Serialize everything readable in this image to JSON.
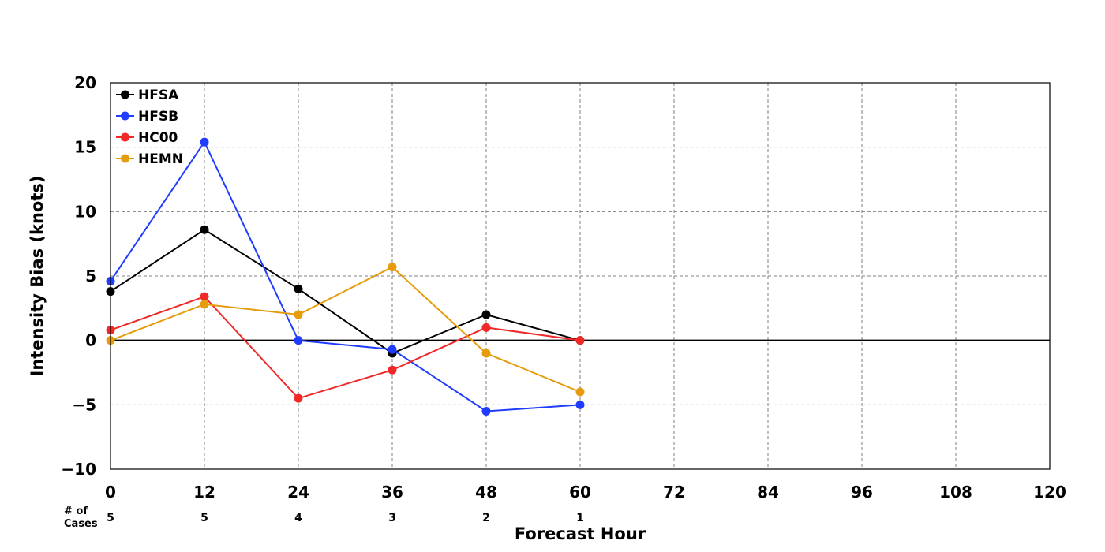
{
  "chart_data": {
    "type": "line",
    "title": "",
    "xlabel": "Forecast Hour",
    "ylabel": "Intensity Bias (knots)",
    "xlim": [
      0,
      120
    ],
    "ylim": [
      -10,
      20
    ],
    "xticks": [
      0,
      12,
      24,
      36,
      48,
      60,
      72,
      84,
      96,
      108,
      120
    ],
    "yticks": [
      -10,
      -5,
      0,
      5,
      10,
      15,
      20
    ],
    "x": [
      0,
      12,
      24,
      36,
      48,
      60
    ],
    "grid": true,
    "legend_position": "top-left",
    "series": [
      {
        "name": "HFSA",
        "color": "#000000",
        "values": [
          3.8,
          8.6,
          4.0,
          -1.0,
          2.0,
          0.0
        ]
      },
      {
        "name": "HFSB",
        "color": "#1f3cff",
        "values": [
          4.6,
          15.4,
          0.0,
          -0.7,
          -5.5,
          -5.0
        ]
      },
      {
        "name": "HC00",
        "color": "#f02828",
        "values": [
          0.8,
          3.4,
          -4.5,
          -2.3,
          1.0,
          0.0
        ]
      },
      {
        "name": "HEMN",
        "color": "#e69c0a",
        "values": [
          0.0,
          2.8,
          2.0,
          5.7,
          -1.0,
          -4.0
        ]
      }
    ],
    "cases": {
      "label_line1": "# of",
      "label_line2": "Cases",
      "x": [
        0,
        12,
        24,
        36,
        48,
        60
      ],
      "values": [
        "5",
        "5",
        "4",
        "3",
        "2",
        "1"
      ]
    }
  }
}
